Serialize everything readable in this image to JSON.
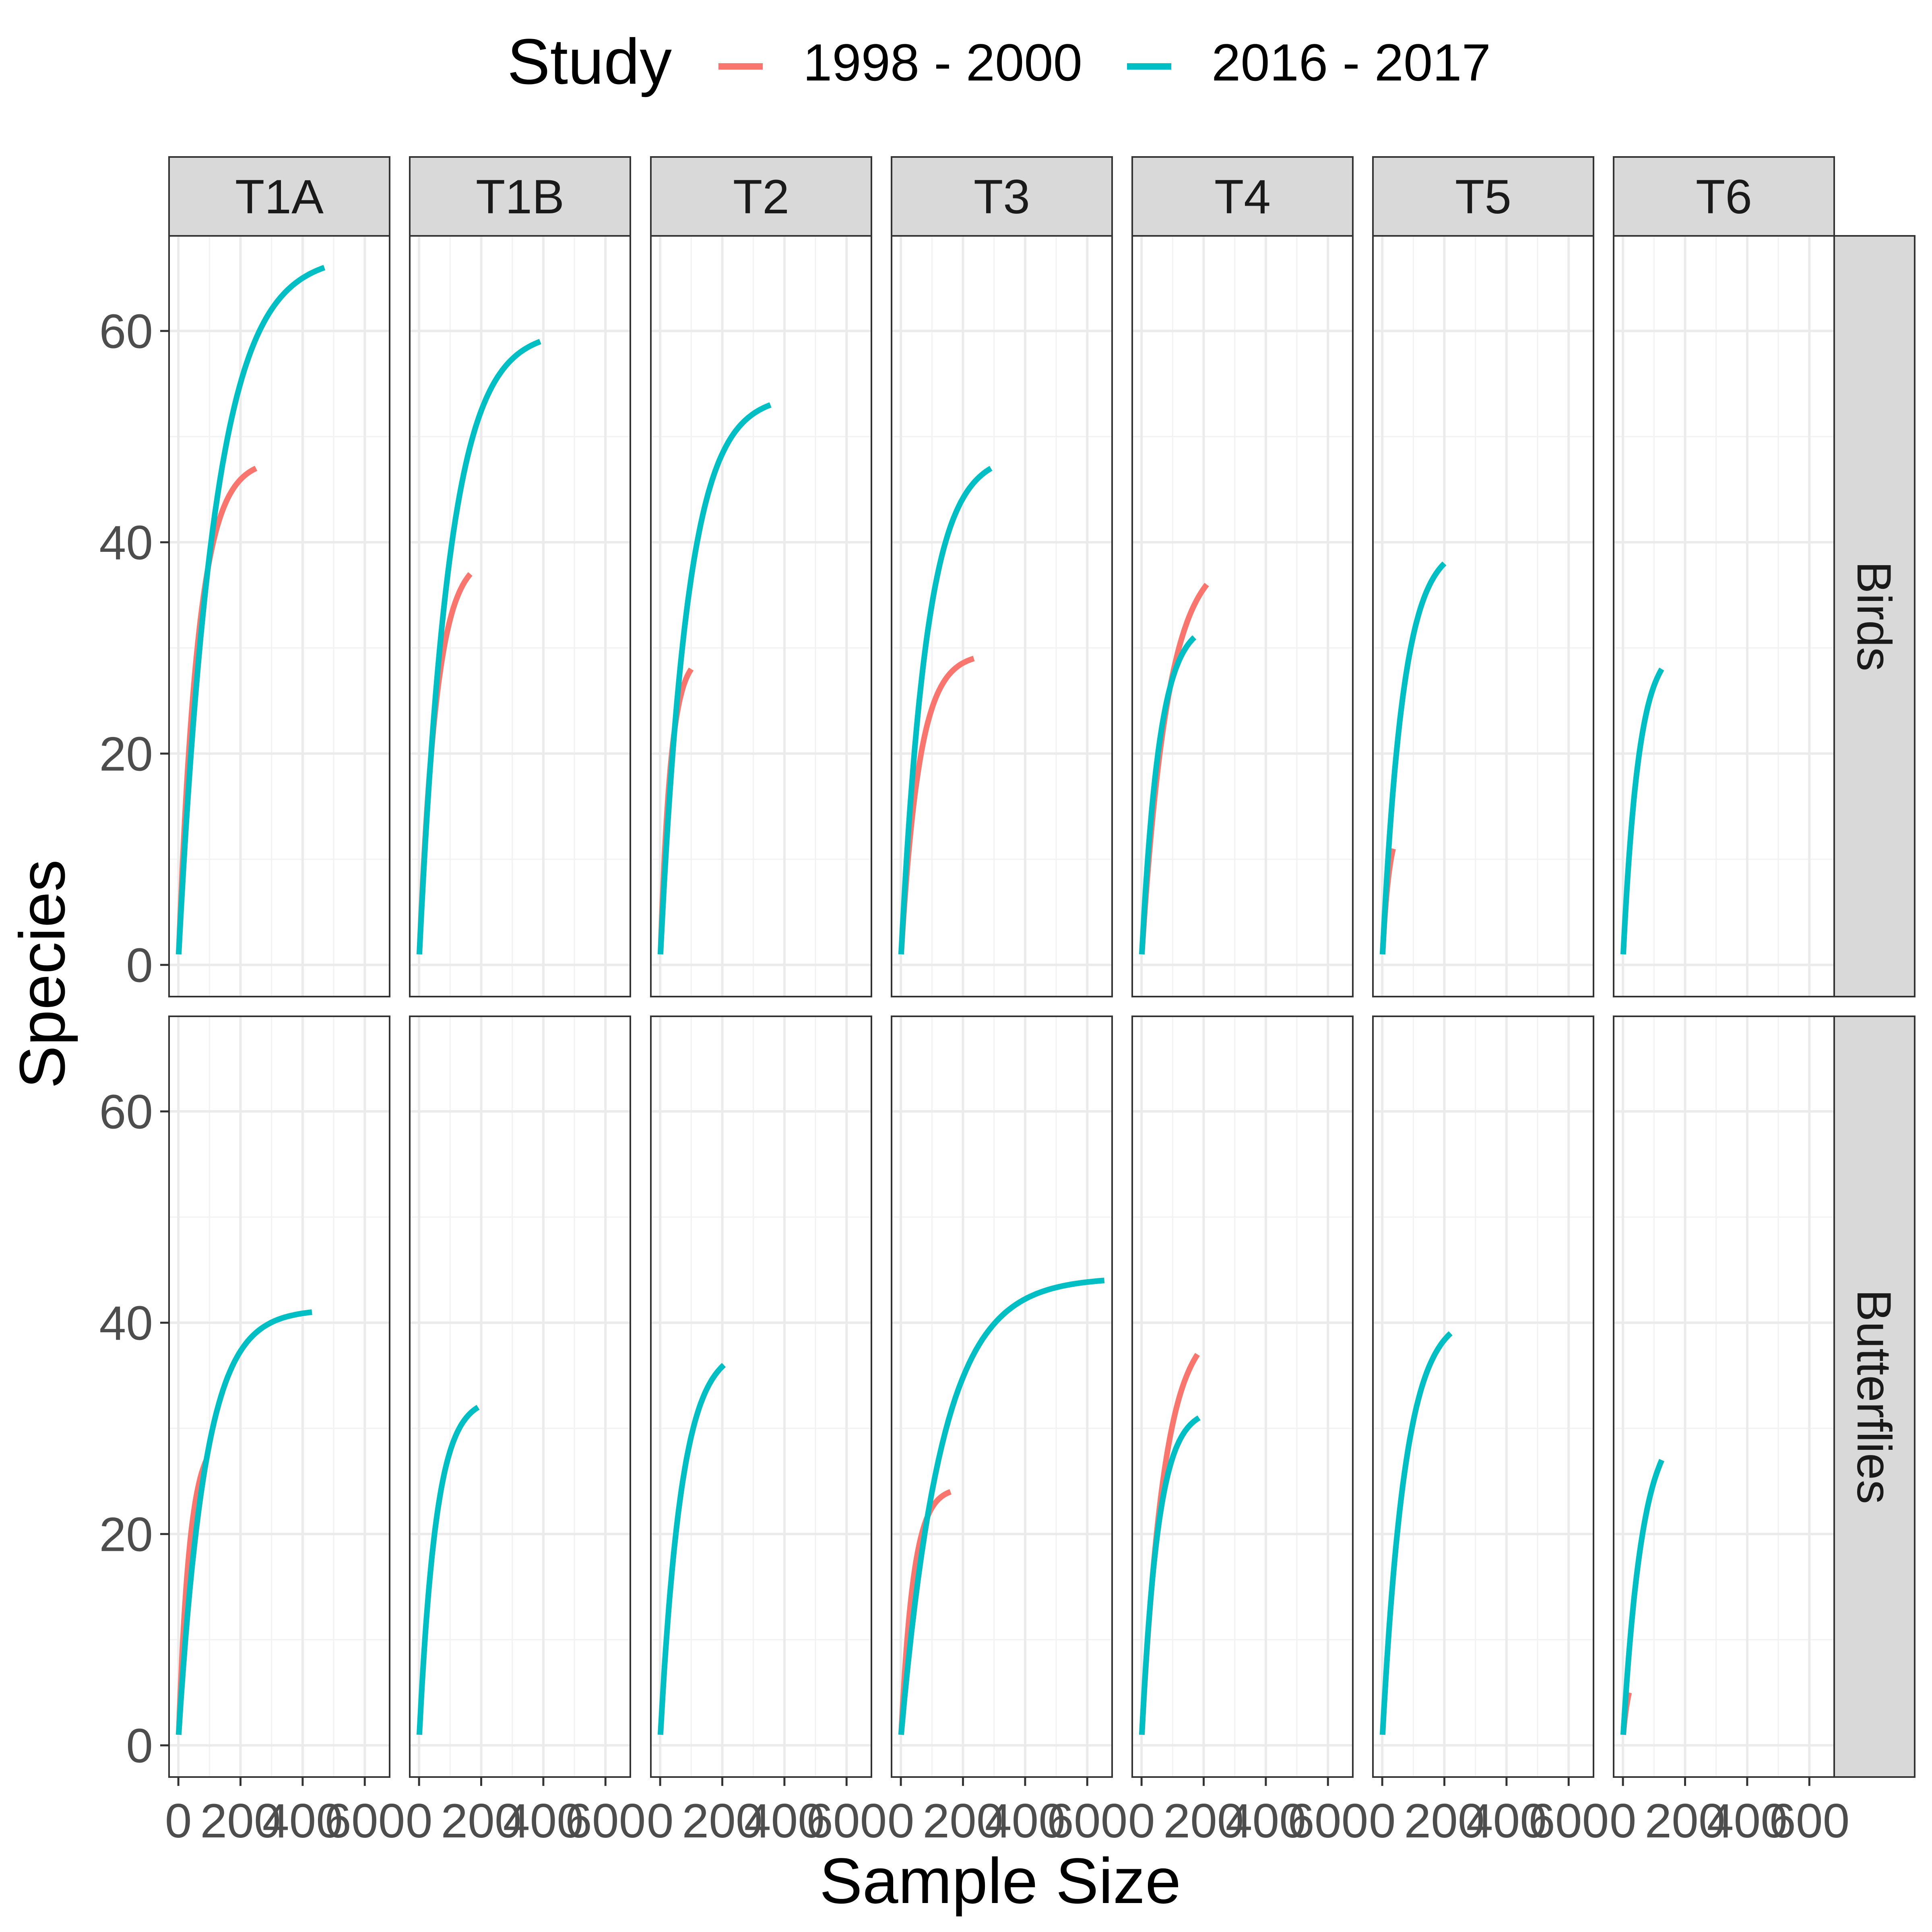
{
  "chart_data": {
    "type": "line",
    "title": "",
    "xlabel": "Sample Size",
    "ylabel": "Species",
    "xlim": [
      -30,
      680
    ],
    "ylim": [
      -3,
      69
    ],
    "x_ticks": [
      0,
      200,
      400,
      600
    ],
    "x_tick_labels": [
      "0",
      "200",
      "400",
      "600"
    ],
    "x_minor_ticks": [
      100,
      300,
      500
    ],
    "y_ticks": [
      0,
      20,
      40,
      60
    ],
    "y_tick_labels": [
      "0",
      "20",
      "40",
      "60"
    ],
    "y_minor_ticks": [
      10,
      30,
      50
    ],
    "grid": true,
    "legend": {
      "title": "Study",
      "position": "top",
      "entries": [
        {
          "name": "1998 - 2000",
          "color": "#F8766D"
        },
        {
          "name": "2016 - 2017",
          "color": "#00BFC4"
        }
      ]
    },
    "facet_columns": [
      "T1A",
      "T1B",
      "T2",
      "T3",
      "T4",
      "T5",
      "T6"
    ],
    "facet_rows": [
      "Birds",
      "Butterflies"
    ],
    "panels": [
      {
        "row": "Birds",
        "col": "T1A",
        "series": [
          {
            "name": "1998 - 2000",
            "x": [
              1,
              250
            ],
            "y": [
              1,
              47
            ],
            "curvature": 4
          },
          {
            "name": "2016 - 2017",
            "x": [
              1,
              470
            ],
            "y": [
              1,
              66
            ],
            "curvature": 4
          }
        ]
      },
      {
        "row": "Birds",
        "col": "T1B",
        "series": [
          {
            "name": "1998 - 2000",
            "x": [
              1,
              165
            ],
            "y": [
              1,
              37
            ],
            "curvature": 3
          },
          {
            "name": "2016 - 2017",
            "x": [
              1,
              390
            ],
            "y": [
              1,
              59
            ],
            "curvature": 4
          }
        ]
      },
      {
        "row": "Birds",
        "col": "T2",
        "series": [
          {
            "name": "1998 - 2000",
            "x": [
              1,
              100
            ],
            "y": [
              1,
              28
            ],
            "curvature": 3
          },
          {
            "name": "2016 - 2017",
            "x": [
              1,
              355
            ],
            "y": [
              1,
              53
            ],
            "curvature": 4
          }
        ]
      },
      {
        "row": "Birds",
        "col": "T3",
        "series": [
          {
            "name": "1998 - 2000",
            "x": [
              1,
              235
            ],
            "y": [
              1,
              29
            ],
            "curvature": 4
          },
          {
            "name": "2016 - 2017",
            "x": [
              1,
              290
            ],
            "y": [
              1,
              47
            ],
            "curvature": 3.5
          }
        ]
      },
      {
        "row": "Birds",
        "col": "T4",
        "series": [
          {
            "name": "1998 - 2000",
            "x": [
              1,
              210
            ],
            "y": [
              1,
              36
            ],
            "curvature": 2.5
          },
          {
            "name": "2016 - 2017",
            "x": [
              1,
              170
            ],
            "y": [
              1,
              31
            ],
            "curvature": 3
          }
        ]
      },
      {
        "row": "Birds",
        "col": "T5",
        "series": [
          {
            "name": "1998 - 2000",
            "x": [
              1,
              35
            ],
            "y": [
              1,
              11
            ],
            "curvature": 1.5
          },
          {
            "name": "2016 - 2017",
            "x": [
              1,
              200
            ],
            "y": [
              1,
              38
            ],
            "curvature": 3
          }
        ]
      },
      {
        "row": "Birds",
        "col": "T6",
        "series": [
          {
            "name": "2016 - 2017",
            "x": [
              1,
              125
            ],
            "y": [
              1,
              28
            ],
            "curvature": 2.5
          }
        ]
      },
      {
        "row": "Butterflies",
        "col": "T1A",
        "series": [
          {
            "name": "1998 - 2000",
            "x": [
              1,
              90
            ],
            "y": [
              1,
              27
            ],
            "curvature": 2.5
          },
          {
            "name": "2016 - 2017",
            "x": [
              1,
              430
            ],
            "y": [
              1,
              41
            ],
            "curvature": 5
          }
        ]
      },
      {
        "row": "Butterflies",
        "col": "T1B",
        "series": [
          {
            "name": "2016 - 2017",
            "x": [
              1,
              190
            ],
            "y": [
              1,
              32
            ],
            "curvature": 3.5
          }
        ]
      },
      {
        "row": "Butterflies",
        "col": "T2",
        "series": [
          {
            "name": "2016 - 2017",
            "x": [
              1,
              205
            ],
            "y": [
              1,
              36
            ],
            "curvature": 3
          }
        ]
      },
      {
        "row": "Butterflies",
        "col": "T3",
        "series": [
          {
            "name": "1998 - 2000",
            "x": [
              1,
              160
            ],
            "y": [
              1,
              24
            ],
            "curvature": 4
          },
          {
            "name": "2016 - 2017",
            "x": [
              1,
              655
            ],
            "y": [
              1,
              44
            ],
            "curvature": 5
          }
        ]
      },
      {
        "row": "Butterflies",
        "col": "T4",
        "series": [
          {
            "name": "1998 - 2000",
            "x": [
              1,
              180
            ],
            "y": [
              1,
              37
            ],
            "curvature": 2.5
          },
          {
            "name": "2016 - 2017",
            "x": [
              1,
              185
            ],
            "y": [
              1,
              31
            ],
            "curvature": 3.5
          }
        ]
      },
      {
        "row": "Butterflies",
        "col": "T5",
        "series": [
          {
            "name": "2016 - 2017",
            "x": [
              1,
              220
            ],
            "y": [
              1,
              39
            ],
            "curvature": 3
          }
        ]
      },
      {
        "row": "Butterflies",
        "col": "T6",
        "series": [
          {
            "name": "1998 - 2000",
            "x": [
              1,
              20
            ],
            "y": [
              1,
              5
            ],
            "curvature": 1
          },
          {
            "name": "2016 - 2017",
            "x": [
              1,
              125
            ],
            "y": [
              1,
              27
            ],
            "curvature": 2
          }
        ]
      }
    ]
  }
}
